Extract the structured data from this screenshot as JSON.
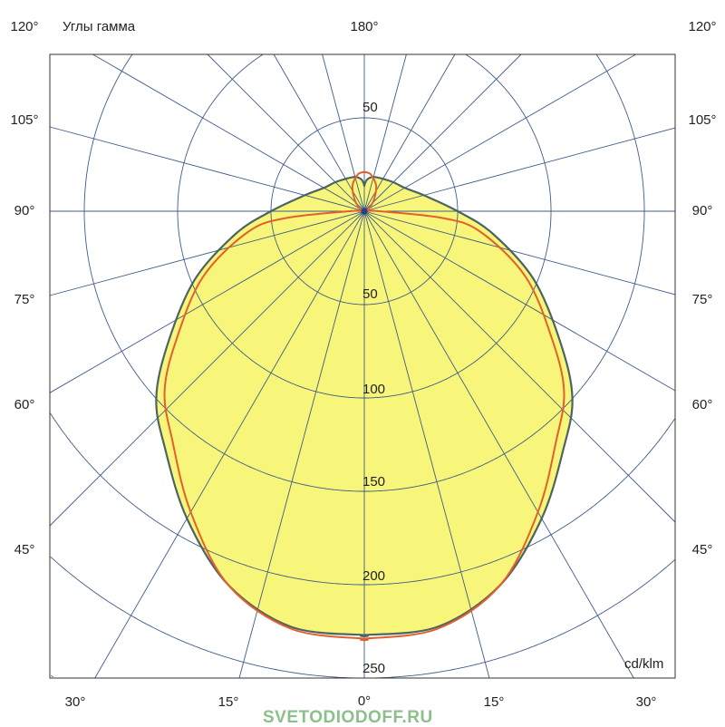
{
  "chart_data": {
    "type": "polar",
    "title": "Углы гамма",
    "unit": "cd/klm",
    "radial_ticks": [
      50,
      100,
      150,
      200,
      250
    ],
    "radial_max": 250,
    "angle_step": 15,
    "left_angle_labels": [
      "120°",
      "105°",
      "90°",
      "75°",
      "60°",
      "45°"
    ],
    "right_angle_labels": [
      "120°",
      "105°",
      "90°",
      "75°",
      "60°",
      "45°"
    ],
    "top_label": "180°",
    "bottom_angle_labels": [
      "30°",
      "15°",
      "0°",
      "15°",
      "30°"
    ],
    "grid": true,
    "series": [
      {
        "color": "#f8f67a",
        "stroke": "#4d6461",
        "fill": true,
        "gamma": [
          0,
          10,
          20,
          30,
          40,
          48,
          56,
          68,
          80,
          90,
          105,
          120,
          135,
          150,
          165,
          175,
          180
        ],
        "values": [
          227,
          226,
          213,
          190,
          166,
          150,
          127,
          98,
          70,
          50,
          33,
          25,
          22,
          20,
          19,
          17,
          14
        ]
      },
      {
        "color": "#e2602e",
        "fill": false,
        "gamma": [
          0,
          10,
          20,
          30,
          40,
          48,
          56,
          68,
          80,
          85,
          90,
          95,
          120,
          140,
          155,
          170,
          180
        ],
        "values": [
          229,
          227,
          213,
          186,
          160,
          144,
          121,
          93,
          63,
          42,
          8,
          2,
          3,
          8,
          15,
          20,
          21
        ]
      }
    ]
  },
  "watermark": "SVETODIODOFF.RU"
}
